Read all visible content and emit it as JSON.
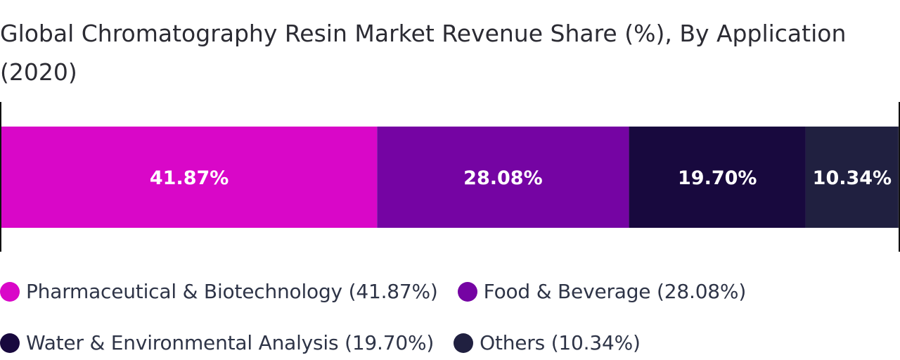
{
  "chart_data": {
    "type": "bar",
    "orientation": "horizontal",
    "stacked": true,
    "title": "Global Chromatography Resin Market Revenue Share (%), By Application (2020)",
    "categories": [
      "Pharmaceutical & Biotechnology",
      "Food & Beverage",
      "Water & Environmental Analysis",
      "Others"
    ],
    "values": [
      41.87,
      28.08,
      19.7,
      10.34
    ],
    "value_labels": [
      "41.87%",
      "28.08%",
      "19.70%",
      "10.34%"
    ],
    "colors": [
      "#d907c8",
      "#7504a3",
      "#18093e",
      "#202040"
    ],
    "xlim": [
      0,
      100
    ],
    "grid": false,
    "legend_placement": "bottom",
    "legend": [
      {
        "label": "Pharmaceutical & Biotechnology (41.87%)",
        "color": "#d907c8"
      },
      {
        "label": "Food & Beverage (28.08%)",
        "color": "#7504a3"
      },
      {
        "label": "Water & Environmental Analysis (19.70%)",
        "color": "#18093e"
      },
      {
        "label": "Others (10.34%)",
        "color": "#202040"
      }
    ]
  }
}
